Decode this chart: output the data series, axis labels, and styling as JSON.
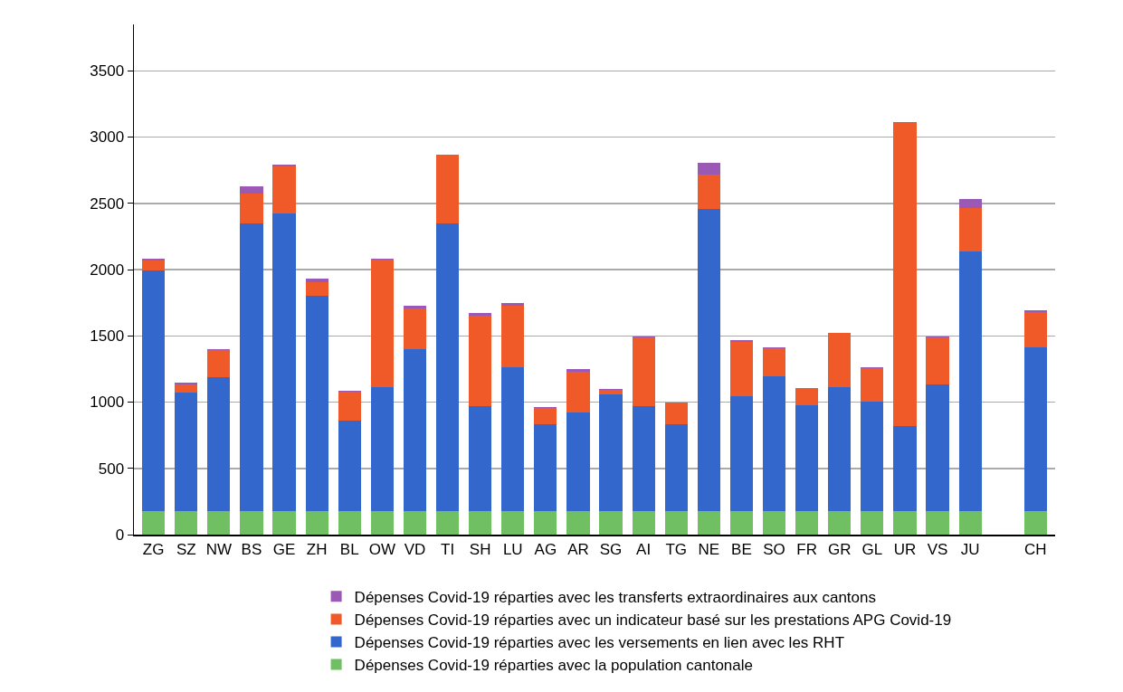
{
  "chart_data": {
    "type": "bar",
    "stacked": true,
    "categories": [
      "ZG",
      "SZ",
      "NW",
      "BS",
      "GE",
      "ZH",
      "BL",
      "OW",
      "VD",
      "TI",
      "SH",
      "LU",
      "AG",
      "AR",
      "SG",
      "AI",
      "TG",
      "NE",
      "BE",
      "SO",
      "FR",
      "GR",
      "GL",
      "UR",
      "VS",
      "JU",
      null,
      "CH"
    ],
    "series": [
      {
        "name": "Dépenses Covid-19 réparties avec la population cantonale",
        "color": "#70bf63",
        "values": [
          175,
          175,
          175,
          175,
          175,
          175,
          175,
          175,
          175,
          175,
          175,
          175,
          175,
          175,
          175,
          175,
          175,
          175,
          175,
          175,
          175,
          175,
          175,
          175,
          175,
          175,
          null,
          175
        ]
      },
      {
        "name": "Dépenses Covid-19 réparties avec les versements en lien avec les RHT",
        "color": "#3367cc",
        "values": [
          1815,
          900,
          1010,
          2175,
          2245,
          1625,
          685,
          935,
          1225,
          2175,
          795,
          1085,
          660,
          745,
          880,
          795,
          660,
          2280,
          870,
          1020,
          800,
          935,
          830,
          645,
          955,
          1960,
          null,
          1240
        ]
      },
      {
        "name": "Dépenses Covid-19 réparties avec un indicateur basé sur les prestations APG Covid-19",
        "color": "#f05a28",
        "values": [
          75,
          55,
          210,
          225,
          360,
          105,
          220,
          965,
          305,
          515,
          685,
          465,
          120,
          310,
          35,
          520,
          160,
          260,
          410,
          210,
          130,
          410,
          250,
          2285,
          355,
          330,
          null,
          265
        ]
      },
      {
        "name": "Dépenses Covid-19 réparties avec les transferts extraordinaires aux cantons",
        "color": "#9b59b6",
        "values": [
          15,
          15,
          5,
          55,
          15,
          25,
          5,
          10,
          20,
          null,
          15,
          20,
          5,
          20,
          10,
          5,
          5,
          90,
          15,
          10,
          null,
          null,
          10,
          5,
          10,
          70,
          null,
          15
        ]
      }
    ],
    "ylim": [
      0,
      3850
    ],
    "yticks": [
      0,
      500,
      1000,
      1500,
      2000,
      2500,
      3000,
      3500
    ],
    "grid": "y",
    "legend": "bottom"
  }
}
